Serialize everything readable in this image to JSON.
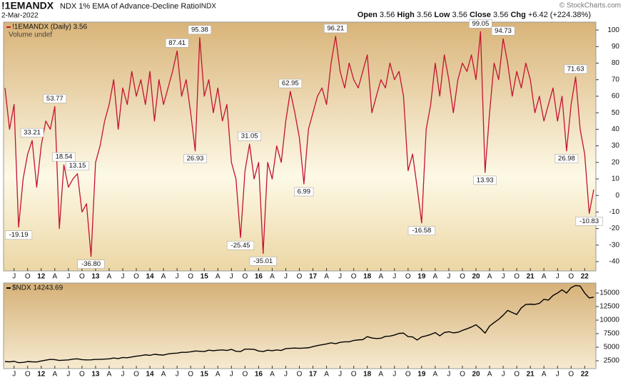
{
  "header": {
    "symbol": "!1EMANDX",
    "name": "NDX 1% EMA of Advance-Decline Ratio",
    "exchange": "INDX",
    "date": "2-Mar-2022",
    "watermark": "© StockCharts.com",
    "quote": [
      {
        "label": "Open",
        "value": "3.56"
      },
      {
        "label": "High",
        "value": "3.56"
      },
      {
        "label": "Low",
        "value": "3.56"
      },
      {
        "label": "Close",
        "value": "3.56"
      },
      {
        "label": "Chg",
        "value": "+6.42 (+224.38%)"
      }
    ]
  },
  "chart_data": [
    {
      "type": "line",
      "legend_note": "Volume undef",
      "grid": false,
      "categories": [
        null,
        null,
        "J",
        null,
        null,
        "O",
        null,
        null,
        "12",
        null,
        null,
        "A",
        null,
        null,
        "J",
        null,
        null,
        "O",
        null,
        null,
        "13",
        null,
        null,
        "A",
        null,
        null,
        "J",
        null,
        null,
        "O",
        null,
        null,
        "14",
        null,
        null,
        "A",
        null,
        null,
        "J",
        null,
        null,
        "O",
        null,
        null,
        "15",
        null,
        null,
        "A",
        null,
        null,
        "J",
        null,
        null,
        "O",
        null,
        null,
        "16",
        null,
        null,
        "A",
        null,
        null,
        "J",
        null,
        null,
        "O",
        null,
        null,
        "17",
        null,
        null,
        "A",
        null,
        null,
        "J",
        null,
        null,
        "O",
        null,
        null,
        "18",
        null,
        null,
        "A",
        null,
        null,
        "J",
        null,
        null,
        "O",
        null,
        null,
        "19",
        null,
        null,
        "A",
        null,
        null,
        "J",
        null,
        null,
        "O",
        null,
        null,
        "20",
        null,
        null,
        "A",
        null,
        null,
        "J",
        null,
        null,
        "O",
        null,
        null,
        "21",
        null,
        null,
        "A",
        null,
        null,
        "J",
        null,
        null,
        "O",
        null,
        null,
        "22",
        null,
        null
      ],
      "series": [
        {
          "name": "!1EMANDX (Daily) 3.56",
          "color": "#c41230",
          "values": [
            65,
            40,
            55,
            -19.19,
            10,
            25,
            33.21,
            5,
            30,
            45,
            40,
            53.77,
            -20,
            18.54,
            5,
            10,
            13.15,
            -10,
            -5,
            -36.8,
            20,
            30,
            45,
            55,
            70,
            40,
            65,
            55,
            75,
            60,
            70,
            55,
            75,
            45,
            70,
            55,
            65,
            75,
            87.41,
            60,
            70,
            50,
            26.93,
            95.38,
            60,
            70,
            50,
            65,
            45,
            55,
            20,
            10,
            -25.45,
            15,
            31.05,
            10,
            20,
            -35.01,
            20,
            10,
            30,
            20,
            45,
            62.95,
            50,
            35,
            6.99,
            40,
            50,
            60,
            65,
            55,
            80,
            96.21,
            75,
            65,
            80,
            70,
            65,
            75,
            85,
            50,
            60,
            70,
            65,
            80,
            70,
            75,
            60,
            15,
            25,
            5,
            -16.58,
            40,
            55,
            80,
            60,
            85,
            70,
            50,
            70,
            80,
            75,
            85,
            70,
            99.05,
            13.93,
            50,
            80,
            70,
            94.73,
            80,
            60,
            75,
            65,
            80,
            70,
            50,
            60,
            45,
            55,
            65,
            45,
            60,
            26.98,
            55,
            71.63,
            40,
            25,
            -10.83,
            3.56
          ],
          "value_labels": [
            null,
            null,
            null,
            "-19.19",
            null,
            null,
            "33.21",
            null,
            null,
            null,
            null,
            "53.77",
            null,
            "18.54",
            null,
            null,
            "13.15",
            null,
            null,
            "-36.80",
            null,
            null,
            null,
            null,
            null,
            null,
            null,
            null,
            null,
            null,
            null,
            null,
            null,
            null,
            null,
            null,
            null,
            null,
            "87.41",
            null,
            null,
            null,
            "26.93",
            "95.38",
            null,
            null,
            null,
            null,
            null,
            null,
            null,
            null,
            "-25.45",
            null,
            "31.05",
            null,
            null,
            "-35.01",
            null,
            null,
            null,
            null,
            null,
            "62.95",
            null,
            null,
            "6.99",
            null,
            null,
            null,
            null,
            null,
            null,
            "96.21",
            null,
            null,
            null,
            null,
            null,
            null,
            null,
            null,
            null,
            null,
            null,
            null,
            null,
            null,
            null,
            null,
            null,
            null,
            "-16.58",
            null,
            null,
            null,
            null,
            null,
            null,
            null,
            null,
            null,
            null,
            null,
            null,
            "99.05",
            "13.93",
            null,
            null,
            null,
            "94.73",
            null,
            null,
            null,
            null,
            null,
            null,
            null,
            null,
            null,
            null,
            null,
            null,
            null,
            "26.98",
            null,
            "71.63",
            null,
            null,
            "-10.83",
            null
          ]
        }
      ],
      "ylim": [
        -45.6,
        104.8
      ],
      "yticks": [
        -40,
        -30,
        -20,
        -10,
        0,
        10,
        20,
        30,
        40,
        50,
        60,
        70,
        80,
        90,
        100
      ]
    },
    {
      "type": "line",
      "grid": false,
      "series": [
        {
          "name": "$NDX 14243.69",
          "color": "#000000",
          "values": [
            2350,
            2300,
            2400,
            2150,
            2200,
            2350,
            2300,
            2280,
            2450,
            2600,
            2750,
            2700,
            2550,
            2600,
            2650,
            2800,
            2850,
            2700,
            2650,
            2670,
            2750,
            2750,
            2800,
            2850,
            3000,
            2900,
            3100,
            3050,
            3200,
            3350,
            3450,
            3600,
            3500,
            3700,
            3600,
            3550,
            3750,
            3850,
            3900,
            4050,
            4050,
            4150,
            4300,
            4250,
            4200,
            4450,
            4350,
            4450,
            4500,
            4400,
            4600,
            4250,
            4200,
            4650,
            4650,
            4600,
            4300,
            4200,
            4450,
            4350,
            4500,
            4400,
            4750,
            4800,
            4850,
            4800,
            4850,
            4900,
            5100,
            5300,
            5450,
            5600,
            5800,
            5650,
            5900,
            6000,
            6000,
            6250,
            6350,
            6400,
            6950,
            6700,
            6600,
            6650,
            7000,
            7050,
            7250,
            7550,
            7600,
            6950,
            6900,
            6330,
            6900,
            7100,
            7350,
            7700,
            7100,
            7700,
            7850,
            7650,
            7750,
            8100,
            8400,
            8730,
            9150,
            8450,
            7600,
            8900,
            9550,
            10150,
            10900,
            11800,
            11400,
            11050,
            12250,
            12890,
            12950,
            12900,
            13100,
            13850,
            13700,
            14550,
            15000,
            15600,
            15000,
            16000,
            16400,
            16300,
            15000,
            14100,
            14243.69
          ]
        }
      ],
      "ylim": [
        1050,
        16850
      ],
      "yticks": [
        2500,
        5000,
        7500,
        10000,
        12500,
        15000
      ]
    }
  ]
}
